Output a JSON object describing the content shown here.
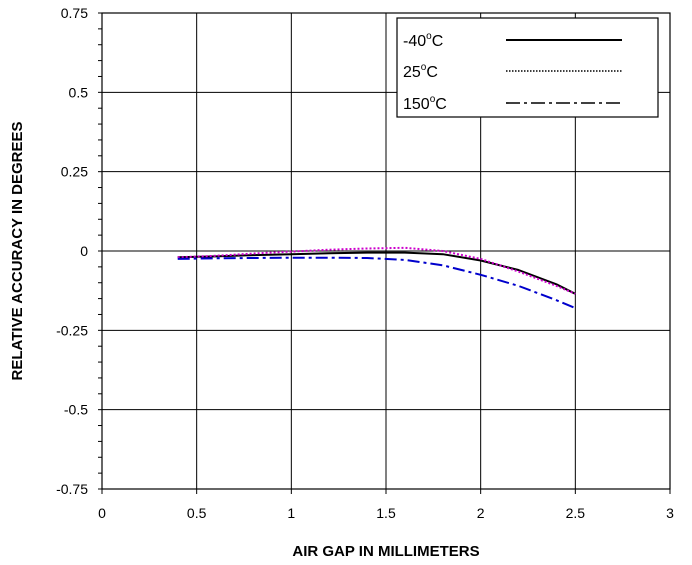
{
  "chart_data": {
    "type": "line",
    "title": "",
    "xlabel": "AIR GAP IN MILLIMETERS",
    "ylabel": "RELATIVE ACCURACY IN DEGREES",
    "xlim": [
      0,
      3
    ],
    "ylim": [
      -0.75,
      0.75
    ],
    "x_ticks": [
      "0",
      "0.5",
      "1",
      "1.5",
      "2",
      "2.5",
      "3"
    ],
    "y_ticks": [
      "0.75",
      "0.5",
      "0.25",
      "0",
      "-0.25",
      "-0.5",
      "-0.75"
    ],
    "grid": true,
    "legend_position": "top-right",
    "series": [
      {
        "name": "-40°C",
        "label_main": "-40",
        "label_sup": "o",
        "label_unit": "C",
        "style": "solid",
        "color": "#000000",
        "x": [
          0.4,
          0.6,
          0.8,
          1.0,
          1.2,
          1.4,
          1.6,
          1.8,
          2.0,
          2.2,
          2.4,
          2.5
        ],
        "y": [
          -0.02,
          -0.017,
          -0.013,
          -0.01,
          -0.007,
          -0.005,
          -0.005,
          -0.01,
          -0.03,
          -0.06,
          -0.105,
          -0.135
        ]
      },
      {
        "name": "25°C",
        "label_main": "25",
        "label_sup": "o",
        "label_unit": "C",
        "style": "dotted",
        "color": "#cc00cc",
        "x": [
          0.4,
          0.6,
          0.8,
          1.0,
          1.2,
          1.4,
          1.6,
          1.8,
          2.0,
          2.2,
          2.4,
          2.5
        ],
        "y": [
          -0.02,
          -0.015,
          -0.008,
          -0.002,
          0.004,
          0.008,
          0.01,
          0.0,
          -0.025,
          -0.065,
          -0.11,
          -0.135
        ]
      },
      {
        "name": "150°C",
        "label_main": "150",
        "label_sup": "o",
        "label_unit": "C",
        "style": "dashdot",
        "color": "#0000cc",
        "x": [
          0.4,
          0.6,
          0.8,
          1.0,
          1.2,
          1.4,
          1.6,
          1.8,
          2.0,
          2.2,
          2.4,
          2.5
        ],
        "y": [
          -0.025,
          -0.023,
          -0.022,
          -0.021,
          -0.021,
          -0.022,
          -0.028,
          -0.045,
          -0.075,
          -0.11,
          -0.155,
          -0.18
        ]
      }
    ]
  }
}
